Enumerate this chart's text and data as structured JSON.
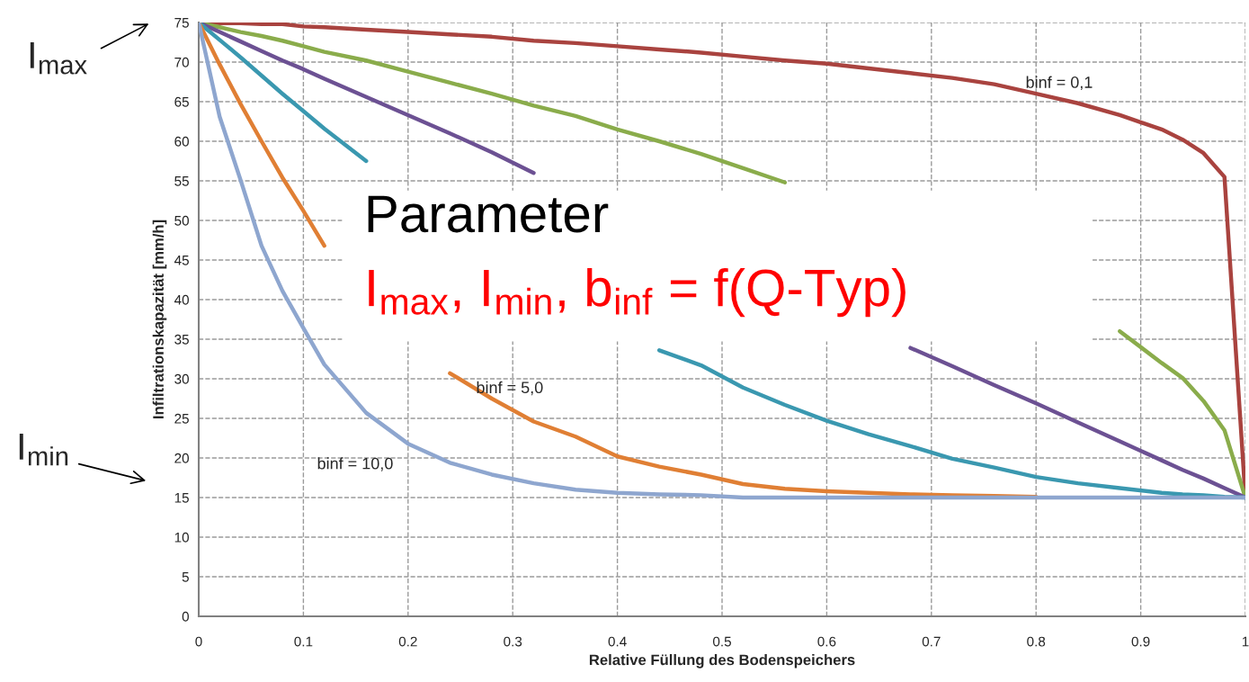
{
  "chart_data": {
    "type": "line",
    "xlabel": "Relative Füllung des Bodenspeichers",
    "ylabel": "Infiltrationskapazität [mm/h]",
    "x": [
      0,
      0.02,
      0.04,
      0.06,
      0.08,
      0.1,
      0.12,
      0.16,
      0.2,
      0.24,
      0.28,
      0.32,
      0.36,
      0.4,
      0.44,
      0.48,
      0.52,
      0.56,
      0.6,
      0.64,
      0.68,
      0.72,
      0.76,
      0.8,
      0.84,
      0.88,
      0.92,
      0.94,
      0.96,
      0.98,
      1.0
    ],
    "series": [
      {
        "color": "#a9433f",
        "values": [
          75,
          74.9,
          74.9,
          74.8,
          74.8,
          74.5,
          74.4,
          74.1,
          73.8,
          73.5,
          73.2,
          72.7,
          72.4,
          72.0,
          71.6,
          71.2,
          70.7,
          70.2,
          69.8,
          69.2,
          68.6,
          68.0,
          67.2,
          66.0,
          64.8,
          63.3,
          61.5,
          60.2,
          58.5,
          55.5,
          15
        ]
      },
      {
        "color": "#8aac4b",
        "values": [
          75,
          74.4,
          73.8,
          73.3,
          72.7,
          72.0,
          71.3,
          70.2,
          68.8,
          67.4,
          66.0,
          64.5,
          63.2,
          61.5,
          60.0,
          58.4,
          56.6,
          54.8,
          null,
          null,
          null,
          null,
          null,
          null,
          null,
          36.0,
          32.0,
          30.1,
          27.2,
          23.5,
          15
        ]
      },
      {
        "color": "#6c5193",
        "values": [
          75,
          73.8,
          72.6,
          71.4,
          70.2,
          69.1,
          67.9,
          65.6,
          63.3,
          61.0,
          58.6,
          56.0,
          null,
          null,
          null,
          null,
          null,
          null,
          null,
          null,
          33.9,
          31.6,
          29.2,
          26.9,
          24.5,
          22.1,
          19.7,
          18.5,
          17.4,
          16.2,
          15
        ]
      },
      {
        "color": "#3a98b0",
        "values": [
          75,
          72.8,
          70.6,
          68.3,
          66.0,
          63.8,
          61.6,
          57.5,
          null,
          null,
          null,
          null,
          null,
          null,
          33.6,
          31.7,
          28.9,
          26.7,
          24.7,
          23.0,
          21.5,
          19.9,
          18.8,
          17.6,
          16.8,
          16.2,
          15.6,
          15.4,
          15.3,
          15.1,
          15
        ]
      },
      {
        "color": "#e07f34",
        "values": [
          75,
          69.7,
          64.7,
          60.0,
          55.4,
          51.2,
          46.8,
          null,
          null,
          30.7,
          27.5,
          24.6,
          22.7,
          20.2,
          18.9,
          17.9,
          16.7,
          16.1,
          15.8,
          15.6,
          15.4,
          15.3,
          15.2,
          15.1,
          null,
          null,
          null,
          null,
          null,
          null,
          null
        ]
      },
      {
        "color": "#8ea6cf",
        "values": [
          75,
          63.1,
          55.1,
          46.8,
          41.1,
          36.4,
          31.8,
          25.7,
          21.8,
          19.4,
          17.9,
          16.8,
          16.0,
          15.6,
          15.4,
          15.3,
          15.0,
          15.0,
          15.0,
          15.0,
          15.0,
          15.0,
          15.0,
          15.0,
          15.0,
          15.0,
          15.0,
          15.0,
          15.0,
          15.0,
          15
        ]
      }
    ],
    "xlim": [
      0,
      1
    ],
    "xticks": [
      0,
      0.1,
      0.2,
      0.3,
      0.4,
      0.5,
      0.6,
      0.7,
      0.8,
      0.9,
      1
    ],
    "ylim": [
      0,
      75
    ],
    "yticks": [
      0,
      5,
      10,
      15,
      20,
      25,
      30,
      35,
      40,
      45,
      50,
      55,
      60,
      65,
      70,
      75
    ],
    "grid": true,
    "line_style": "solid",
    "annotations": [
      "binf = 0,1",
      "binf = 5,0",
      "binf = 10,0",
      "Parameter",
      "I$_{max}$, I$_{min}$, b$_{inf}$ = f(Q-Typ)",
      "I$_{max}$",
      "I$_{min}$"
    ]
  }
}
